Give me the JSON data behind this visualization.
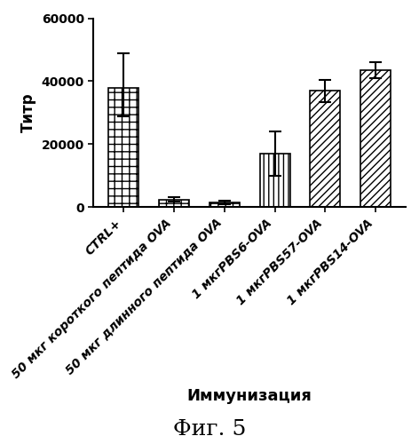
{
  "categories": [
    "CTRL+",
    "50 мкг короткого пептида OVA",
    "50 мкг длинного пептида OVA",
    "1 мкгPBS6-OVA",
    "1 мкгPBS57-OVA",
    "1 мкгPBS14-OVA"
  ],
  "values": [
    38000,
    2500,
    1500,
    17000,
    37000,
    43500
  ],
  "errors_plus": [
    11000,
    700,
    500,
    7000,
    3500,
    2500
  ],
  "errors_minus": [
    9000,
    700,
    500,
    7000,
    3500,
    2500
  ],
  "hatches": [
    "++",
    "++",
    "++",
    "|||",
    "////",
    "////"
  ],
  "ylim": [
    0,
    60000
  ],
  "yticks": [
    0,
    20000,
    40000,
    60000
  ],
  "ylabel": "Титр",
  "xlabel": "Иммунизация",
  "caption": "Фиг. 5",
  "label_fontsize": 12,
  "tick_fontsize": 10,
  "caption_fontsize": 18,
  "xlabel_fontsize": 13,
  "background_color": "#ffffff"
}
